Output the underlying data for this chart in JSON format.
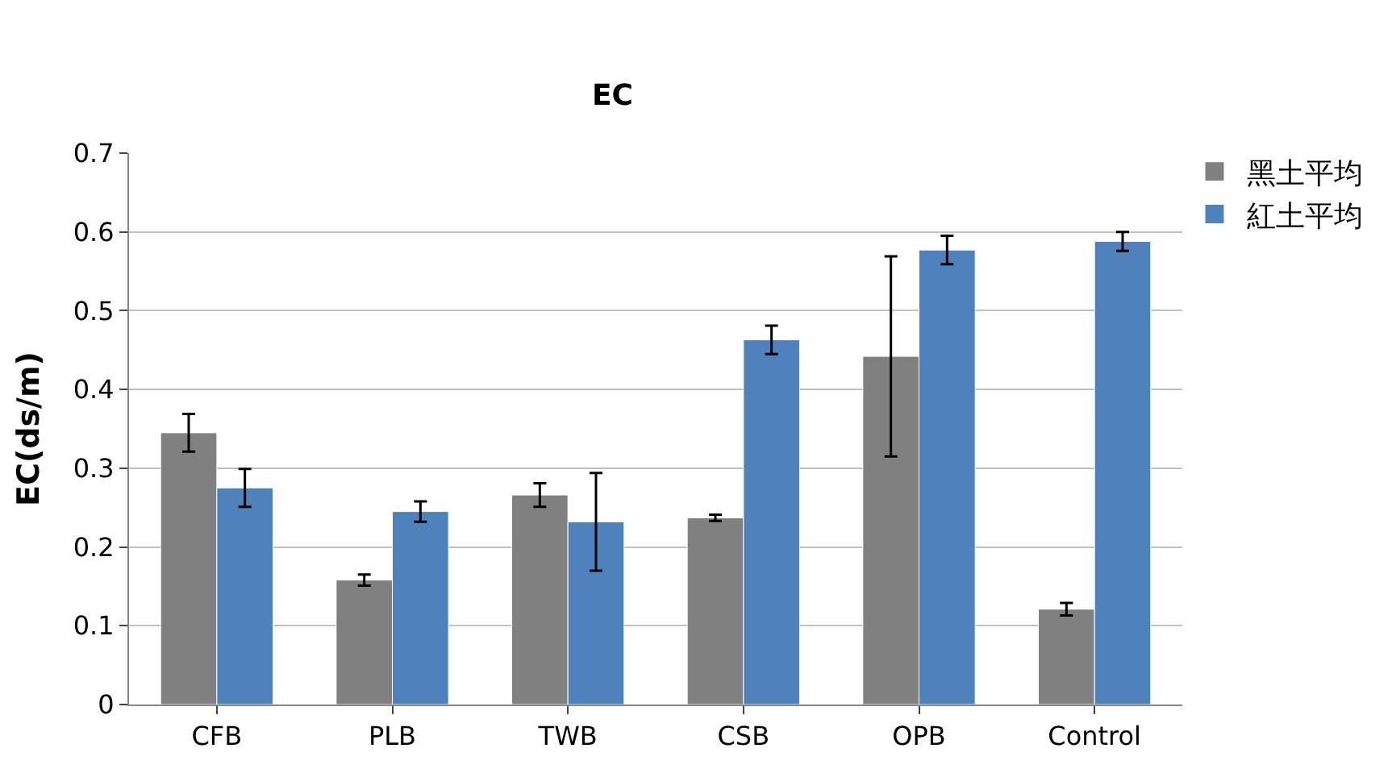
{
  "chart_data": {
    "type": "bar",
    "title": "EC",
    "ylabel": "EC(ds/m)",
    "categories": [
      "CFB",
      "PLB",
      "TWB",
      "CSB",
      "OPB",
      "Control"
    ],
    "series": [
      {
        "name": "黑土平均",
        "color": "#808080",
        "values": [
          0.345,
          0.158,
          0.266,
          0.237,
          0.442,
          0.121
        ],
        "errors": [
          0.024,
          0.007,
          0.015,
          0.004,
          0.127,
          0.008
        ]
      },
      {
        "name": "紅土平均",
        "color": "#4f81bd",
        "values": [
          0.275,
          0.245,
          0.232,
          0.463,
          0.577,
          0.588
        ],
        "errors": [
          0.024,
          0.013,
          0.062,
          0.018,
          0.018,
          0.012
        ]
      }
    ],
    "ylim": [
      0,
      0.7
    ],
    "yticks": [
      0,
      0.1,
      0.2,
      0.3,
      0.4,
      0.5,
      0.6,
      0.7
    ],
    "grid": "y",
    "legend": "top right"
  }
}
